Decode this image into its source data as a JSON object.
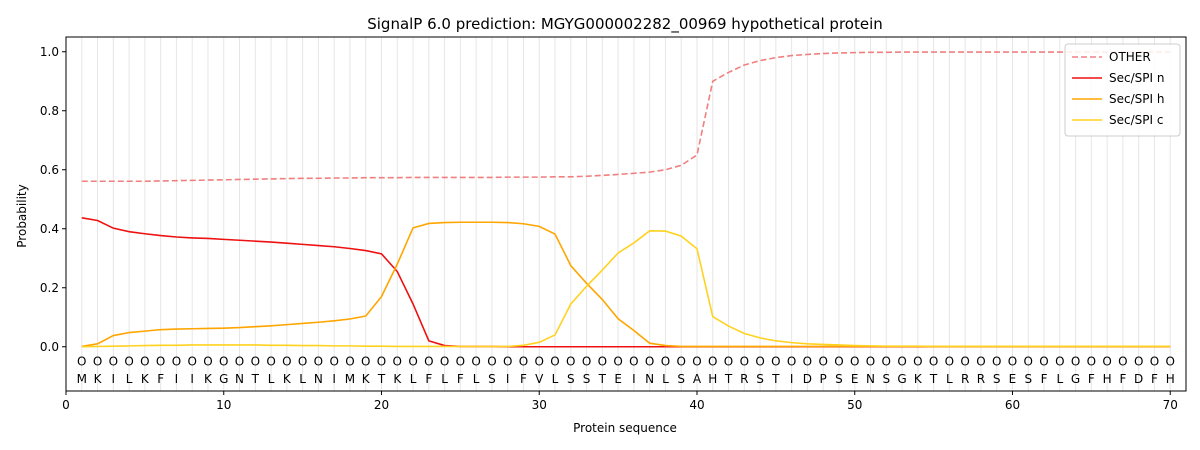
{
  "chart_data": {
    "type": "line",
    "title": "SignalP 6.0 prediction: MGYG000002282_00969 hypothetical protein",
    "xlabel": "Protein sequence",
    "ylabel": "Probability",
    "xlim": [
      0,
      71
    ],
    "ylim": [
      -0.15,
      1.05
    ],
    "x_ticks": [
      0,
      10,
      20,
      30,
      40,
      50,
      60,
      70
    ],
    "y_ticks": [
      0.0,
      0.2,
      0.4,
      0.6,
      0.8,
      1.0
    ],
    "x_tick_labels": [
      "0",
      "10",
      "20",
      "30",
      "40",
      "50",
      "60",
      "70"
    ],
    "y_tick_labels": [
      "0.0",
      "0.2",
      "0.4",
      "0.6",
      "0.8",
      "1.0"
    ],
    "grid": "vertical lines at each residue",
    "legend_position": "top-right",
    "sequence": [
      "M",
      "K",
      "I",
      "L",
      "K",
      "F",
      "I",
      "I",
      "K",
      "G",
      "N",
      "T",
      "L",
      "K",
      "L",
      "N",
      "I",
      "M",
      "K",
      "T",
      "K",
      "L",
      "F",
      "L",
      "F",
      "L",
      "S",
      "I",
      "F",
      "V",
      "L",
      "S",
      "S",
      "T",
      "E",
      "I",
      "N",
      "L",
      "S",
      "A",
      "H",
      "T",
      "R",
      "S",
      "T",
      "I",
      "D",
      "P",
      "S",
      "E",
      "N",
      "S",
      "G",
      "K",
      "T",
      "L",
      "R",
      "R",
      "S",
      "E",
      "S",
      "F",
      "L",
      "G",
      "F",
      "H",
      "F",
      "D",
      "F",
      "H"
    ],
    "position_marker": "O",
    "series": [
      {
        "name": "OTHER",
        "color": "#f08080",
        "dashed": true,
        "values": [
          0.561,
          0.561,
          0.561,
          0.561,
          0.561,
          0.562,
          0.563,
          0.564,
          0.565,
          0.566,
          0.567,
          0.568,
          0.569,
          0.57,
          0.571,
          0.571,
          0.572,
          0.572,
          0.573,
          0.573,
          0.573,
          0.574,
          0.574,
          0.574,
          0.574,
          0.574,
          0.574,
          0.575,
          0.575,
          0.575,
          0.576,
          0.576,
          0.578,
          0.581,
          0.584,
          0.588,
          0.592,
          0.6,
          0.615,
          0.65,
          0.9,
          0.93,
          0.955,
          0.97,
          0.98,
          0.987,
          0.991,
          0.994,
          0.996,
          0.997,
          0.998,
          0.998,
          0.999,
          0.999,
          0.999,
          0.999,
          0.999,
          0.999,
          0.999,
          0.999,
          0.999,
          0.999,
          0.999,
          0.999,
          0.999,
          0.999,
          0.999,
          0.999,
          0.999,
          0.999
        ]
      },
      {
        "name": "Sec/SPI n",
        "color": "#ee1111",
        "dashed": false,
        "values": [
          0.437,
          0.428,
          0.402,
          0.39,
          0.383,
          0.377,
          0.372,
          0.369,
          0.367,
          0.364,
          0.361,
          0.358,
          0.355,
          0.351,
          0.347,
          0.343,
          0.339,
          0.333,
          0.326,
          0.315,
          0.255,
          0.145,
          0.02,
          0.004,
          0.001,
          0.001,
          0.001,
          0.0,
          0.0,
          0.0,
          0.0,
          0.0,
          0.0,
          0.0,
          0.0,
          0.0,
          0.0,
          0.0,
          0.0,
          0.0,
          0.0,
          0.0,
          0.0,
          0.0,
          0.0,
          0.0,
          0.0,
          0.0,
          0.0,
          0.0,
          0.0,
          0.0,
          0.0,
          0.0,
          0.0,
          0.0,
          0.0,
          0.0,
          0.0,
          0.0,
          0.0,
          0.0,
          0.0,
          0.0,
          0.0,
          0.0,
          0.0,
          0.0,
          0.0,
          0.0
        ]
      },
      {
        "name": "Sec/SPI h",
        "color": "#ffa500",
        "dashed": false,
        "values": [
          0.001,
          0.01,
          0.038,
          0.048,
          0.053,
          0.058,
          0.06,
          0.061,
          0.062,
          0.063,
          0.065,
          0.068,
          0.071,
          0.075,
          0.079,
          0.083,
          0.088,
          0.094,
          0.104,
          0.17,
          0.28,
          0.403,
          0.418,
          0.421,
          0.422,
          0.422,
          0.422,
          0.421,
          0.417,
          0.408,
          0.382,
          0.275,
          0.215,
          0.16,
          0.095,
          0.055,
          0.012,
          0.004,
          0.001,
          0.001,
          0.001,
          0.001,
          0.001,
          0.001,
          0.001,
          0.001,
          0.001,
          0.001,
          0.001,
          0.001,
          0.001,
          0.001,
          0.001,
          0.001,
          0.001,
          0.001,
          0.001,
          0.001,
          0.001,
          0.001,
          0.001,
          0.001,
          0.001,
          0.001,
          0.001,
          0.001,
          0.001,
          0.001,
          0.001,
          0.001
        ]
      },
      {
        "name": "Sec/SPI c",
        "color": "#ffd21f",
        "dashed": false,
        "values": [
          0.0,
          0.001,
          0.002,
          0.003,
          0.004,
          0.005,
          0.005,
          0.006,
          0.006,
          0.006,
          0.006,
          0.006,
          0.005,
          0.005,
          0.004,
          0.004,
          0.003,
          0.003,
          0.002,
          0.002,
          0.001,
          0.001,
          0.001,
          0.001,
          0.001,
          0.001,
          0.001,
          0.001,
          0.005,
          0.015,
          0.04,
          0.145,
          0.205,
          0.26,
          0.318,
          0.352,
          0.393,
          0.392,
          0.375,
          0.332,
          0.102,
          0.07,
          0.045,
          0.03,
          0.02,
          0.014,
          0.01,
          0.008,
          0.006,
          0.004,
          0.003,
          0.002,
          0.002,
          0.002,
          0.001,
          0.001,
          0.001,
          0.001,
          0.001,
          0.001,
          0.001,
          0.001,
          0.001,
          0.001,
          0.001,
          0.001,
          0.001,
          0.001,
          0.001,
          0.001
        ]
      }
    ]
  }
}
